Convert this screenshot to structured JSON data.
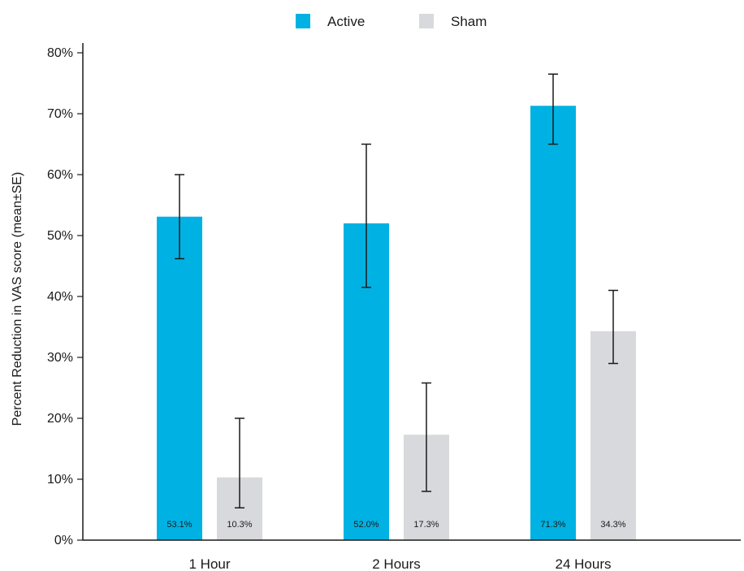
{
  "chart_data": {
    "type": "bar",
    "categories": [
      "1 Hour",
      "2 Hours",
      "24 Hours"
    ],
    "ylabel": "Percent Reduction in VAS score (mean±SE)",
    "ylim": [
      0,
      80
    ],
    "yticks": [
      0,
      10,
      20,
      30,
      40,
      50,
      60,
      70,
      80
    ],
    "ytick_labels": [
      "0%",
      "10%",
      "20%",
      "30%",
      "40%",
      "50%",
      "60%",
      "70%",
      "80%"
    ],
    "legend_position": "top-center",
    "grid": false,
    "series": [
      {
        "name": "Active",
        "color": "#00B2E3",
        "values": [
          53.1,
          52.0,
          71.3
        ],
        "error_low": [
          46.2,
          41.5,
          65.0
        ],
        "error_high": [
          60.0,
          65.0,
          76.5
        ],
        "labels": [
          "53.1%",
          "52.0%",
          "71.3%"
        ]
      },
      {
        "name": "Sham",
        "color": "#D8D9DC",
        "values": [
          10.3,
          17.3,
          34.3
        ],
        "error_low": [
          5.3,
          8.0,
          29.0
        ],
        "error_high": [
          20.0,
          25.8,
          41.0
        ],
        "labels": [
          "10.3%",
          "17.3%",
          "34.3%"
        ]
      }
    ]
  }
}
